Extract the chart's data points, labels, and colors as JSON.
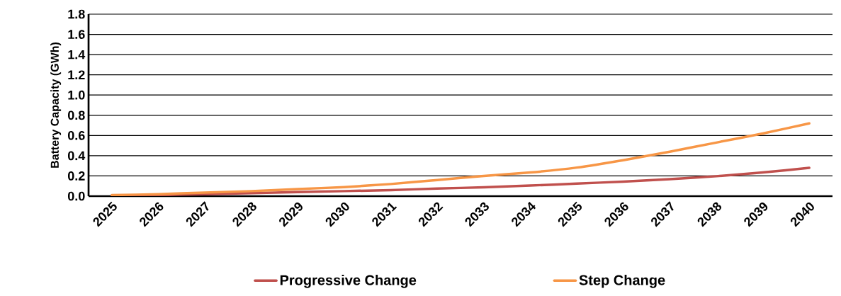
{
  "chart_data": {
    "type": "line",
    "ylabel": "Battery Capacity (GWh)",
    "categories": [
      "2025",
      "2026",
      "2027",
      "2028",
      "2029",
      "2030",
      "2031",
      "2032",
      "2033",
      "2034",
      "2035",
      "2036",
      "2037",
      "2038",
      "2039",
      "2040"
    ],
    "series": [
      {
        "name": "Progressive Change",
        "color": "#c0504d",
        "values": [
          0.005,
          0.01,
          0.02,
          0.03,
          0.04,
          0.05,
          0.06,
          0.075,
          0.088,
          0.105,
          0.124,
          0.144,
          0.168,
          0.197,
          0.234,
          0.28
        ]
      },
      {
        "name": "Step Change",
        "color": "#f79646",
        "values": [
          0.01,
          0.02,
          0.035,
          0.05,
          0.07,
          0.09,
          0.12,
          0.16,
          0.2,
          0.234,
          0.283,
          0.356,
          0.44,
          0.53,
          0.62,
          0.72
        ]
      }
    ],
    "ylim": [
      0,
      1.8
    ],
    "yticks": [
      {
        "value": 0,
        "label": "0.0"
      },
      {
        "value": 0.2,
        "label": "0.2"
      },
      {
        "value": 0.4,
        "label": "0.4"
      },
      {
        "value": 0.6,
        "label": "0.6"
      },
      {
        "value": 0.8,
        "label": "0.8"
      },
      {
        "value": 1.0,
        "label": "1.0"
      },
      {
        "value": 1.2,
        "label": "1.2"
      },
      {
        "value": 1.4,
        "label": "1.4"
      },
      {
        "value": 1.6,
        "label": "1.6"
      },
      {
        "value": 1.8,
        "label": "1.8"
      }
    ],
    "grid": "y",
    "legend": "bottom",
    "marker": "none",
    "line_style": "solid"
  }
}
